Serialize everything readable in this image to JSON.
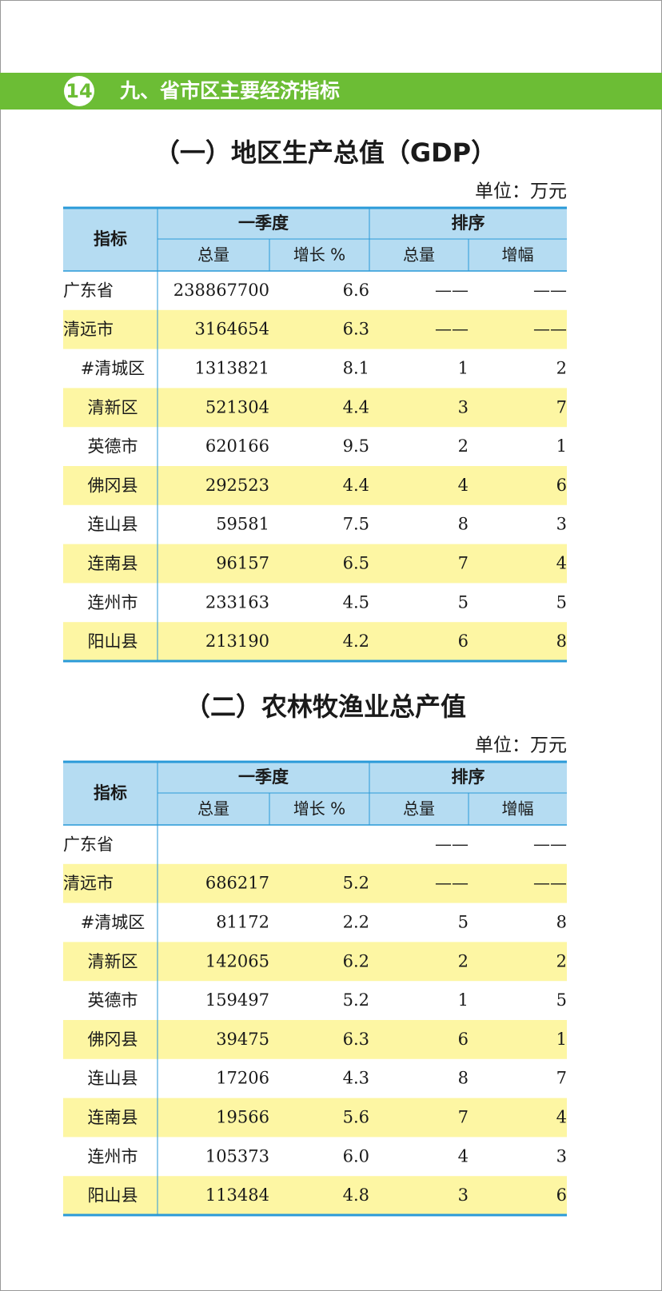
{
  "header": {
    "page_number": "14",
    "section_title": "九、省市区主要经济指标"
  },
  "tables": [
    {
      "title": "（一）地区生产总值（GDP）",
      "unit": "单位：万元",
      "head": {
        "indicator": "指标",
        "group1": "一季度",
        "group2": "排序",
        "sub": [
          "总量",
          "增长 %",
          "总量",
          "增幅"
        ]
      },
      "rows": [
        [
          "广东省",
          "238867700",
          "6.6",
          "——",
          "——"
        ],
        [
          "清远市",
          "3164654",
          "6.3",
          "——",
          "——"
        ],
        [
          "#清城区",
          "1313821",
          "8.1",
          "1",
          "2"
        ],
        [
          "清新区",
          "521304",
          "4.4",
          "3",
          "7"
        ],
        [
          "英德市",
          "620166",
          "9.5",
          "2",
          "1"
        ],
        [
          "佛冈县",
          "292523",
          "4.4",
          "4",
          "6"
        ],
        [
          "连山县",
          "59581",
          "7.5",
          "8",
          "3"
        ],
        [
          "连南县",
          "96157",
          "6.5",
          "7",
          "4"
        ],
        [
          "连州市",
          "233163",
          "4.5",
          "5",
          "5"
        ],
        [
          "阳山县",
          "213190",
          "4.2",
          "6",
          "8"
        ]
      ]
    },
    {
      "title": "（二）农林牧渔业总产值",
      "unit": "单位：万元",
      "head": {
        "indicator": "指标",
        "group1": "一季度",
        "group2": "排序",
        "sub": [
          "总量",
          "增长 %",
          "总量",
          "增幅"
        ]
      },
      "rows": [
        [
          "广东省",
          null,
          null,
          "——",
          "——"
        ],
        [
          "清远市",
          "686217",
          "5.2",
          "——",
          "——"
        ],
        [
          "#清城区",
          "81172",
          "2.2",
          "5",
          "8"
        ],
        [
          "清新区",
          "142065",
          "6.2",
          "2",
          "2"
        ],
        [
          "英德市",
          "159497",
          "5.2",
          "1",
          "5"
        ],
        [
          "佛冈县",
          "39475",
          "6.3",
          "6",
          "1"
        ],
        [
          "连山县",
          "17206",
          "4.3",
          "8",
          "7"
        ],
        [
          "连南县",
          "19566",
          "5.6",
          "7",
          "4"
        ],
        [
          "连州市",
          "105373",
          "6.0",
          "4",
          "3"
        ],
        [
          "阳山县",
          "113484",
          "4.8",
          "3",
          "6"
        ]
      ]
    }
  ]
}
